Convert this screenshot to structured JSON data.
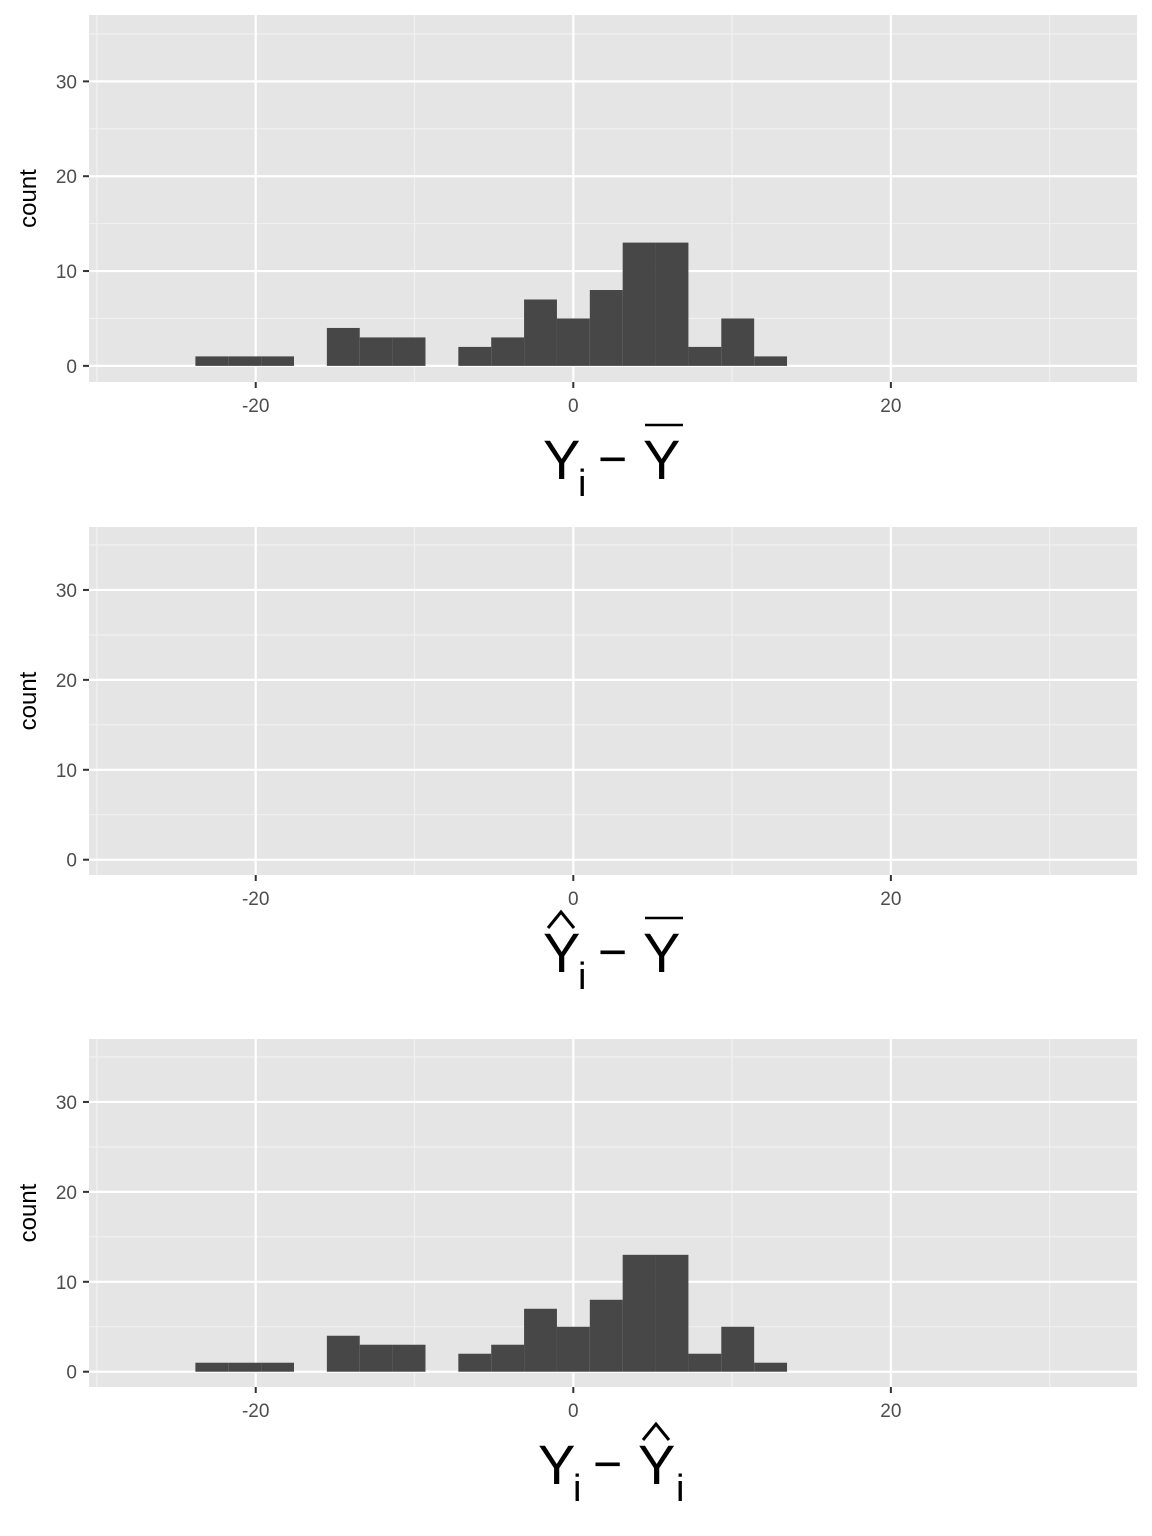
{
  "colors": {
    "panel_background": "#e5e5e5",
    "grid_major": "#ffffff",
    "grid_minor": "#f2f2f2",
    "bar_fill": "#474747",
    "tick_text": "#4d4d4d"
  },
  "chart_data": [
    {
      "type": "bar",
      "histogram": true,
      "ylabel": "count",
      "xlabel_math": {
        "base": "Y",
        "base_hat": false,
        "sub": "i",
        "op": "−",
        "rhs": "Y",
        "rhs_bar": true,
        "rhs_hat": false,
        "rhs_sub": ""
      },
      "xlim": [
        -30.5,
        35.5
      ],
      "ylim": [
        -1.7,
        37
      ],
      "x_ticks": [
        -20,
        0,
        20
      ],
      "x_tick_labels": [
        "-20",
        "0",
        "20"
      ],
      "y_ticks": [
        0,
        10,
        20,
        30
      ],
      "y_tick_labels": [
        "0",
        "10",
        "20",
        "30"
      ],
      "grid": true,
      "bin_width": 2.07,
      "bins": [
        {
          "x0": -23.8,
          "count": 1
        },
        {
          "x0": -21.73,
          "count": 1
        },
        {
          "x0": -19.66,
          "count": 1
        },
        {
          "x0": -15.52,
          "count": 4
        },
        {
          "x0": -13.45,
          "count": 3
        },
        {
          "x0": -11.38,
          "count": 3
        },
        {
          "x0": -7.24,
          "count": 2
        },
        {
          "x0": -5.17,
          "count": 3
        },
        {
          "x0": -3.1,
          "count": 7
        },
        {
          "x0": -1.03,
          "count": 5
        },
        {
          "x0": 1.04,
          "count": 8
        },
        {
          "x0": 3.11,
          "count": 13
        },
        {
          "x0": 5.18,
          "count": 13
        },
        {
          "x0": 7.25,
          "count": 2
        },
        {
          "x0": 9.32,
          "count": 5
        },
        {
          "x0": 11.39,
          "count": 1
        }
      ]
    },
    {
      "type": "bar",
      "histogram": true,
      "ylabel": "count",
      "xlabel_math": {
        "base": "Y",
        "base_hat": true,
        "sub": "i",
        "op": "−",
        "rhs": "Y",
        "rhs_bar": true,
        "rhs_hat": false,
        "rhs_sub": ""
      },
      "xlim": [
        -30.5,
        35.5
      ],
      "ylim": [
        -1.7,
        37
      ],
      "x_ticks": [
        -20,
        0,
        20
      ],
      "x_tick_labels": [
        "-20",
        "0",
        "20"
      ],
      "y_ticks": [
        0,
        10,
        20,
        30
      ],
      "y_tick_labels": [
        "0",
        "10",
        "20",
        "30"
      ],
      "grid": true,
      "bin_width": 2.07,
      "bins": []
    },
    {
      "type": "bar",
      "histogram": true,
      "ylabel": "count",
      "xlabel_math": {
        "base": "Y",
        "base_hat": false,
        "sub": "i",
        "op": "−",
        "rhs": "Y",
        "rhs_bar": false,
        "rhs_hat": true,
        "rhs_sub": "i"
      },
      "xlim": [
        -30.5,
        35.5
      ],
      "ylim": [
        -1.7,
        37
      ],
      "x_ticks": [
        -20,
        0,
        20
      ],
      "x_tick_labels": [
        "-20",
        "0",
        "20"
      ],
      "y_ticks": [
        0,
        10,
        20,
        30
      ],
      "y_tick_labels": [
        "0",
        "10",
        "20",
        "30"
      ],
      "grid": true,
      "bin_width": 2.07,
      "bins": [
        {
          "x0": -23.8,
          "count": 1
        },
        {
          "x0": -21.73,
          "count": 1
        },
        {
          "x0": -19.66,
          "count": 1
        },
        {
          "x0": -15.52,
          "count": 4
        },
        {
          "x0": -13.45,
          "count": 3
        },
        {
          "x0": -11.38,
          "count": 3
        },
        {
          "x0": -7.24,
          "count": 2
        },
        {
          "x0": -5.17,
          "count": 3
        },
        {
          "x0": -3.1,
          "count": 7
        },
        {
          "x0": -1.03,
          "count": 5
        },
        {
          "x0": 1.04,
          "count": 8
        },
        {
          "x0": 3.11,
          "count": 13
        },
        {
          "x0": 5.18,
          "count": 13
        },
        {
          "x0": 7.25,
          "count": 2
        },
        {
          "x0": 9.32,
          "count": 5
        },
        {
          "x0": 11.39,
          "count": 1
        }
      ]
    }
  ]
}
